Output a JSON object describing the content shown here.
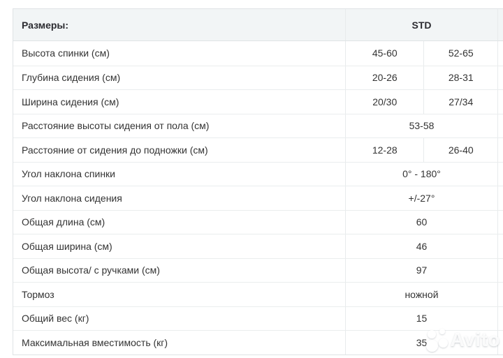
{
  "colors": {
    "page_background": "#ffffff",
    "header_background": "#f2f5f6",
    "outer_border": "#dfe3e5",
    "row_border": "#eaedee",
    "column_border": "#e8ebec",
    "text": "#333333",
    "header_text": "#2c2c31",
    "watermark": "#ffffff"
  },
  "table": {
    "header": {
      "title": "Размеры:",
      "std_label": "STD"
    },
    "rows": [
      {
        "label": "Высота спинки (см)",
        "values": [
          "45-60",
          "52-65"
        ]
      },
      {
        "label": "Глубина сидения (см)",
        "values": [
          "20-26",
          "28-31"
        ]
      },
      {
        "label": "Ширина сидения (см)",
        "values": [
          "20/30",
          "27/34"
        ]
      },
      {
        "label": "Расстояние высоты сидения от пола (см)",
        "values": [
          "53-58"
        ]
      },
      {
        "label": "Расстояние от сидения до подножки (см)",
        "values": [
          "12-28",
          "26-40"
        ]
      },
      {
        "label": "Угол наклона спинки",
        "values": [
          "0° - 180°"
        ]
      },
      {
        "label": "Угол наклона сидения",
        "values": [
          "+/-27°"
        ]
      },
      {
        "label": "Общая длина (см)",
        "values": [
          "60"
        ]
      },
      {
        "label": "Общая ширина (см)",
        "values": [
          "46"
        ]
      },
      {
        "label": "Общая высота/ с ручками (см)",
        "values": [
          "97"
        ]
      },
      {
        "label": "Тормоз",
        "values": [
          "ножной"
        ]
      },
      {
        "label": "Общий вес (кг)",
        "values": [
          "15"
        ]
      },
      {
        "label": "Максимальная вместимость (кг)",
        "values": [
          "35"
        ]
      }
    ]
  },
  "watermark": {
    "text": "Avito",
    "logo_icon": "avito-circles-logo"
  }
}
